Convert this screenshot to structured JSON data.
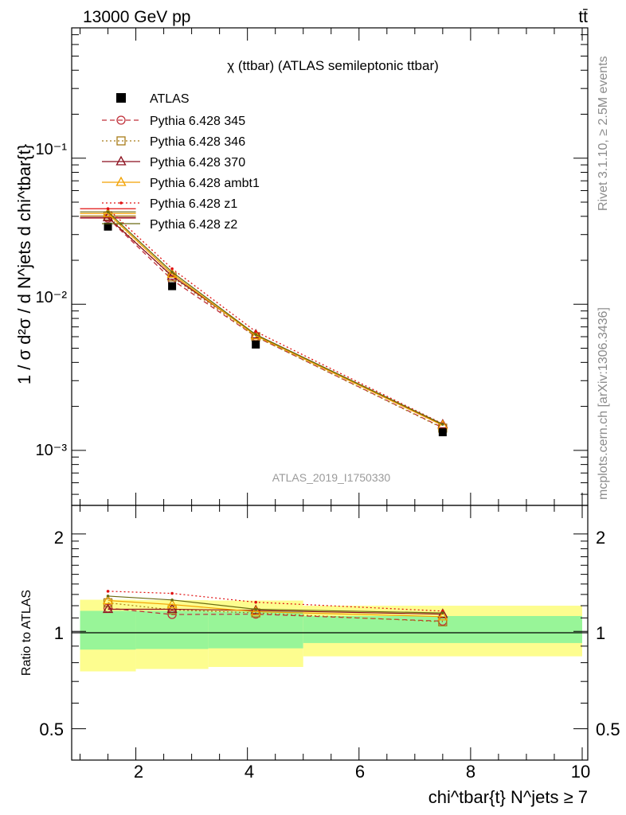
{
  "header": {
    "energy_label": "13000 GeV pp",
    "process_label": "tt̄"
  },
  "plot_title": "χ (ttbar) (ATLAS semileptonic ttbar)",
  "analysis_id": "ATLAS_2019_I1750330",
  "side_labels": {
    "rivet": "Rivet 3.1.10, ≥ 2.5M events",
    "mcplots": "mcplots.cern.ch [arXiv:1306.3436]"
  },
  "axes": {
    "ylabel_main": "1 / σ d²σ / d N^jets d chi^tbar{t}",
    "ylabel_ratio": "Ratio to ATLAS",
    "xlabel": "chi^tbar{t} N^jets ≥ 7",
    "main_ticks": [
      "10⁻¹",
      "10⁻²",
      "10⁻³"
    ],
    "ratio_ticks_left": [
      "2",
      "1",
      "0.5"
    ],
    "ratio_ticks_right": [
      "2",
      "1",
      "0.5"
    ],
    "x_ticks": [
      "2",
      "4",
      "6",
      "8",
      "10"
    ]
  },
  "chart_data": {
    "type": "line",
    "x_scale": "linear",
    "y_scale": "log",
    "xlim": [
      0.85,
      10.1
    ],
    "ylim": [
      0.00042,
      0.78
    ],
    "ratio_ylim": [
      0.4,
      2.45
    ],
    "ratio_scale": "log",
    "x": [
      1.5,
      2.65,
      4.15,
      7.5
    ],
    "bin_edges": [
      1.0,
      2.0,
      3.3,
      5.0,
      10.0
    ],
    "data": {
      "name": "ATLAS",
      "values": [
        0.034,
        0.0133,
        0.0053,
        0.00133
      ],
      "color": "#000000"
    },
    "series": [
      {
        "name": "Pythia 6.428 345",
        "values": [
          0.0389,
          0.0147,
          0.006,
          0.00143
        ],
        "color": "#c0303a",
        "dash": "6,4",
        "marker": "circle"
      },
      {
        "name": "Pythia 6.428 346",
        "values": [
          0.0402,
          0.0154,
          0.006,
          0.00142
        ],
        "color": "#a87b16",
        "dash": "2,3",
        "marker": "square"
      },
      {
        "name": "Pythia 6.428 370",
        "values": [
          0.0393,
          0.0156,
          0.0062,
          0.0015
        ],
        "color": "#8b0f1d",
        "dash": "",
        "marker": "triangle"
      },
      {
        "name": "Pythia 6.428 ambt1",
        "values": [
          0.0418,
          0.0161,
          0.0061,
          0.00148
        ],
        "color": "#f2a100",
        "dash": "",
        "marker": "triangle"
      },
      {
        "name": "Pythia 6.428 z1",
        "values": [
          0.0451,
          0.0175,
          0.0065,
          0.00152
        ],
        "color": "#e01010",
        "dash": "2,3",
        "marker": "star"
      },
      {
        "name": "Pythia 6.428 z2",
        "values": [
          0.0429,
          0.0166,
          0.0062,
          0.00151
        ],
        "color": "#6b6b10",
        "dash": "",
        "marker": "star"
      }
    ],
    "ratio_bands": [
      {
        "x0": 1.0,
        "x1": 2.0,
        "yellow": [
          0.752,
          1.252
        ],
        "green": [
          0.878,
          1.157
        ]
      },
      {
        "x0": 2.0,
        "x1": 3.3,
        "yellow": [
          0.765,
          1.248
        ],
        "green": [
          0.882,
          1.157
        ]
      },
      {
        "x0": 3.3,
        "x1": 5.0,
        "yellow": [
          0.776,
          1.245
        ],
        "green": [
          0.886,
          1.152
        ]
      },
      {
        "x0": 5.0,
        "x1": 10.0,
        "yellow": [
          0.837,
          1.2
        ],
        "green": [
          0.92,
          1.115
        ]
      }
    ],
    "ratio_series": [
      {
        "name": "Pythia 6.428 345",
        "values": [
          1.18,
          1.127,
          1.13,
          1.075
        ]
      },
      {
        "name": "Pythia 6.428 346",
        "values": [
          1.225,
          1.165,
          1.14,
          1.07
        ]
      },
      {
        "name": "Pythia 6.428 370",
        "values": [
          1.17,
          1.17,
          1.16,
          1.13
        ]
      },
      {
        "name": "Pythia 6.428 ambt1",
        "values": [
          1.245,
          1.21,
          1.15,
          1.11
        ]
      },
      {
        "name": "Pythia 6.428 z1",
        "values": [
          1.33,
          1.31,
          1.23,
          1.155
        ]
      },
      {
        "name": "Pythia 6.428 z2",
        "values": [
          1.285,
          1.25,
          1.17,
          1.14
        ]
      }
    ],
    "legend_position": "top-left"
  }
}
